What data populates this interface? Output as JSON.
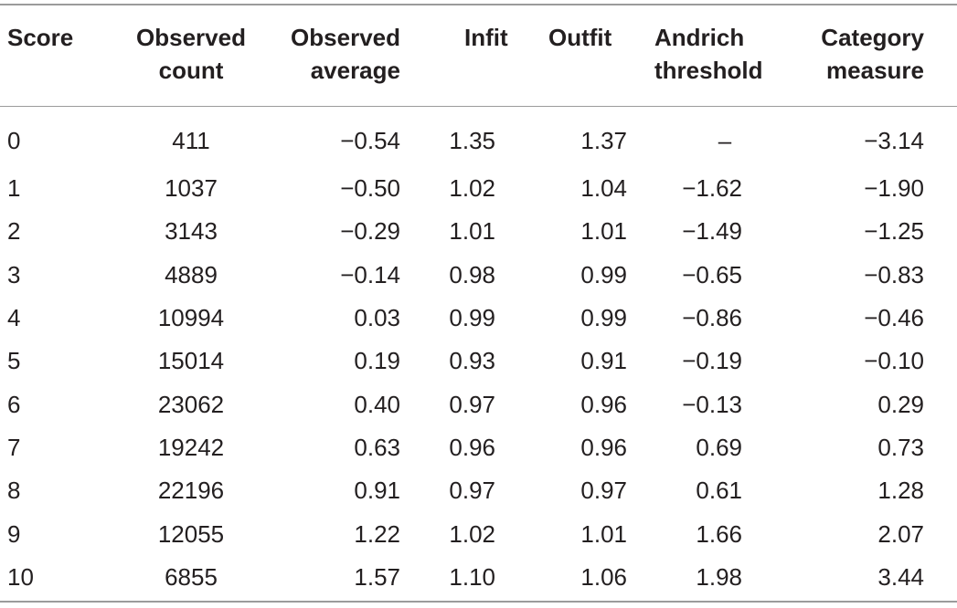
{
  "table": {
    "headers": [
      [
        "Score"
      ],
      [
        "Observed",
        "count"
      ],
      [
        "Observed",
        "average"
      ],
      [
        "Infit"
      ],
      [
        "Outfit"
      ],
      [
        "Andrich",
        "threshold"
      ],
      [
        "Category",
        "measure"
      ]
    ],
    "rows": [
      [
        "0",
        "411",
        "−0.54",
        "1.35",
        "1.37",
        "–",
        "−3.14"
      ],
      [
        "1",
        "1037",
        "−0.50",
        "1.02",
        "1.04",
        "−1.62",
        "−1.90"
      ],
      [
        "2",
        "3143",
        "−0.29",
        "1.01",
        "1.01",
        "−1.49",
        "−1.25"
      ],
      [
        "3",
        "4889",
        "−0.14",
        "0.98",
        "0.99",
        "−0.65",
        "−0.83"
      ],
      [
        "4",
        "10994",
        "0.03",
        "0.99",
        "0.99",
        "−0.86",
        "−0.46"
      ],
      [
        "5",
        "15014",
        "0.19",
        "0.93",
        "0.91",
        "−0.19",
        "−0.10"
      ],
      [
        "6",
        "23062",
        "0.40",
        "0.97",
        "0.96",
        "−0.13",
        "0.29"
      ],
      [
        "7",
        "19242",
        "0.63",
        "0.96",
        "0.96",
        "0.69",
        "0.73"
      ],
      [
        "8",
        "22196",
        "0.91",
        "0.97",
        "0.97",
        "0.61",
        "1.28"
      ],
      [
        "9",
        "12055",
        "1.22",
        "1.02",
        "1.01",
        "1.66",
        "2.07"
      ],
      [
        "10",
        "6855",
        "1.57",
        "1.10",
        "1.06",
        "1.98",
        "3.44"
      ]
    ]
  }
}
